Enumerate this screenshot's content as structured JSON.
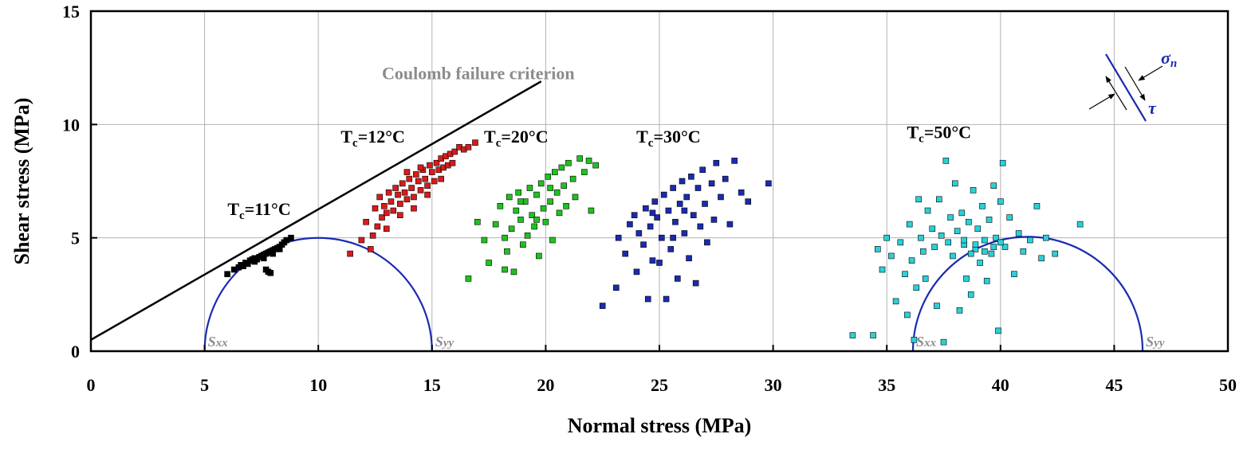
{
  "chart_data": {
    "type": "scatter",
    "xlabel": "Normal stress (MPa)",
    "ylabel": "Shear stress (MPa)",
    "xlim": [
      0,
      50
    ],
    "ylim": [
      0,
      15
    ],
    "xticks": [
      "0",
      "5",
      "10",
      "15",
      "20",
      "25",
      "30",
      "35",
      "40",
      "45",
      "50"
    ],
    "yticks": [
      "0",
      "5",
      "10",
      "15"
    ],
    "grid": true,
    "coulomb_line": {
      "label": "Coulomb failure criterion",
      "x": [
        0,
        19.8
      ],
      "y": [
        0.5,
        11.9
      ],
      "color": "#000000"
    },
    "mohr_circles": [
      {
        "center": 10.0,
        "radius": 5.0,
        "color": "#1a2bb0",
        "left_label": "S",
        "left_sub": "xx",
        "right_label": "S",
        "right_sub": "yy"
      },
      {
        "center": 41.2,
        "radius": 5.05,
        "color": "#1a2bb0",
        "left_label": "S",
        "left_sub": "xx",
        "right_label": "S",
        "right_sub": "yy"
      }
    ],
    "series": [
      {
        "name_main": "T",
        "name_sub": "c",
        "name_tail": "=11°C",
        "color": "#000000",
        "label_pos": [
          7.4,
          6.0
        ],
        "points": [
          [
            6.0,
            3.4
          ],
          [
            6.3,
            3.6
          ],
          [
            6.5,
            3.7
          ],
          [
            6.6,
            3.8
          ],
          [
            6.8,
            3.9
          ],
          [
            6.9,
            3.85
          ],
          [
            7.0,
            4.0
          ],
          [
            7.1,
            4.05
          ],
          [
            7.2,
            4.1
          ],
          [
            7.3,
            4.05
          ],
          [
            7.4,
            4.15
          ],
          [
            7.5,
            4.2
          ],
          [
            7.6,
            4.25
          ],
          [
            7.6,
            4.1
          ],
          [
            7.7,
            4.3
          ],
          [
            7.8,
            4.35
          ],
          [
            7.9,
            4.4
          ],
          [
            8.0,
            4.45
          ],
          [
            8.0,
            4.3
          ],
          [
            8.1,
            4.5
          ],
          [
            8.2,
            4.55
          ],
          [
            8.3,
            4.6
          ],
          [
            8.4,
            4.7
          ],
          [
            8.5,
            4.8
          ],
          [
            8.6,
            4.9
          ],
          [
            8.8,
            5.0
          ],
          [
            7.8,
            3.5
          ],
          [
            7.9,
            3.45
          ],
          [
            7.7,
            3.6
          ],
          [
            6.7,
            3.75
          ],
          [
            7.2,
            3.95
          ],
          [
            8.3,
            4.5
          ]
        ]
      },
      {
        "name_main": "T",
        "name_sub": "c",
        "name_tail": "=12°C",
        "color": "#d81b1b",
        "label_pos": [
          12.4,
          9.2
        ],
        "points": [
          [
            11.4,
            4.3
          ],
          [
            11.9,
            4.9
          ],
          [
            12.1,
            5.7
          ],
          [
            12.3,
            4.5
          ],
          [
            12.5,
            6.3
          ],
          [
            12.6,
            5.5
          ],
          [
            12.7,
            6.8
          ],
          [
            12.8,
            5.9
          ],
          [
            12.9,
            6.4
          ],
          [
            13.0,
            6.1
          ],
          [
            13.1,
            7.0
          ],
          [
            13.2,
            6.6
          ],
          [
            13.3,
            6.2
          ],
          [
            13.4,
            7.2
          ],
          [
            13.5,
            6.9
          ],
          [
            13.6,
            6.5
          ],
          [
            13.7,
            7.4
          ],
          [
            13.8,
            7.0
          ],
          [
            13.9,
            6.7
          ],
          [
            14.0,
            7.6
          ],
          [
            14.1,
            7.2
          ],
          [
            14.2,
            6.8
          ],
          [
            14.3,
            7.8
          ],
          [
            14.4,
            7.5
          ],
          [
            14.5,
            7.1
          ],
          [
            14.6,
            8.0
          ],
          [
            14.7,
            7.6
          ],
          [
            14.8,
            7.3
          ],
          [
            14.9,
            8.2
          ],
          [
            15.0,
            7.9
          ],
          [
            15.1,
            7.5
          ],
          [
            15.2,
            8.3
          ],
          [
            15.3,
            8.0
          ],
          [
            15.4,
            8.5
          ],
          [
            15.5,
            8.1
          ],
          [
            15.6,
            8.6
          ],
          [
            15.7,
            8.2
          ],
          [
            15.8,
            8.7
          ],
          [
            16.0,
            8.8
          ],
          [
            16.2,
            9.0
          ],
          [
            16.4,
            8.9
          ],
          [
            16.6,
            9.0
          ],
          [
            16.9,
            9.2
          ],
          [
            13.0,
            5.4
          ],
          [
            13.6,
            6.0
          ],
          [
            14.2,
            6.3
          ],
          [
            14.8,
            6.9
          ],
          [
            15.4,
            7.6
          ],
          [
            12.4,
            5.1
          ],
          [
            13.9,
            7.9
          ],
          [
            14.5,
            8.1
          ],
          [
            15.9,
            8.3
          ]
        ]
      },
      {
        "name_main": "T",
        "name_sub": "c",
        "name_tail": "=20°C",
        "color": "#1fc21f",
        "label_pos": [
          18.7,
          9.2
        ],
        "points": [
          [
            16.6,
            3.2
          ],
          [
            17.0,
            5.7
          ],
          [
            17.3,
            4.9
          ],
          [
            17.5,
            3.9
          ],
          [
            17.8,
            5.6
          ],
          [
            18.0,
            6.4
          ],
          [
            18.2,
            5.0
          ],
          [
            18.3,
            4.4
          ],
          [
            18.4,
            6.8
          ],
          [
            18.5,
            5.4
          ],
          [
            18.6,
            3.5
          ],
          [
            18.7,
            6.2
          ],
          [
            18.8,
            7.0
          ],
          [
            18.9,
            5.8
          ],
          [
            19.0,
            4.7
          ],
          [
            19.1,
            6.6
          ],
          [
            19.2,
            5.1
          ],
          [
            19.3,
            7.2
          ],
          [
            19.4,
            6.0
          ],
          [
            19.5,
            5.5
          ],
          [
            19.6,
            6.9
          ],
          [
            19.7,
            4.2
          ],
          [
            19.8,
            7.4
          ],
          [
            19.9,
            6.3
          ],
          [
            20.0,
            5.7
          ],
          [
            20.1,
            7.7
          ],
          [
            20.2,
            6.6
          ],
          [
            20.3,
            4.9
          ],
          [
            20.4,
            7.9
          ],
          [
            20.5,
            7.0
          ],
          [
            20.6,
            6.1
          ],
          [
            20.7,
            8.1
          ],
          [
            20.8,
            7.3
          ],
          [
            20.9,
            6.4
          ],
          [
            21.0,
            8.3
          ],
          [
            21.2,
            7.6
          ],
          [
            21.3,
            6.8
          ],
          [
            21.5,
            8.5
          ],
          [
            21.7,
            7.9
          ],
          [
            21.9,
            8.4
          ],
          [
            22.0,
            6.2
          ],
          [
            22.2,
            8.2
          ],
          [
            18.2,
            3.6
          ],
          [
            19.6,
            5.8
          ],
          [
            20.2,
            7.2
          ],
          [
            18.9,
            6.6
          ]
        ]
      },
      {
        "name_main": "T",
        "name_sub": "c",
        "name_tail": "=30°C",
        "color": "#1a2bb0",
        "label_pos": [
          25.4,
          9.2
        ],
        "points": [
          [
            22.5,
            2.0
          ],
          [
            23.1,
            2.8
          ],
          [
            23.2,
            5.0
          ],
          [
            23.5,
            4.3
          ],
          [
            23.7,
            5.6
          ],
          [
            23.9,
            6.0
          ],
          [
            24.0,
            3.5
          ],
          [
            24.1,
            5.2
          ],
          [
            24.3,
            4.7
          ],
          [
            24.4,
            6.3
          ],
          [
            24.5,
            2.3
          ],
          [
            24.6,
            5.5
          ],
          [
            24.7,
            4.0
          ],
          [
            24.8,
            6.6
          ],
          [
            24.9,
            5.9
          ],
          [
            25.0,
            3.9
          ],
          [
            25.1,
            5.0
          ],
          [
            25.2,
            6.9
          ],
          [
            25.3,
            2.3
          ],
          [
            25.4,
            6.2
          ],
          [
            25.5,
            4.5
          ],
          [
            25.6,
            7.2
          ],
          [
            25.7,
            5.7
          ],
          [
            25.8,
            3.2
          ],
          [
            25.9,
            6.5
          ],
          [
            26.0,
            7.5
          ],
          [
            26.1,
            5.2
          ],
          [
            26.2,
            6.8
          ],
          [
            26.3,
            4.1
          ],
          [
            26.4,
            7.7
          ],
          [
            26.5,
            6.0
          ],
          [
            26.6,
            3.0
          ],
          [
            26.7,
            7.2
          ],
          [
            26.8,
            5.5
          ],
          [
            26.9,
            8.0
          ],
          [
            27.0,
            6.5
          ],
          [
            27.1,
            4.8
          ],
          [
            27.3,
            7.4
          ],
          [
            27.4,
            5.8
          ],
          [
            27.5,
            8.3
          ],
          [
            27.7,
            6.8
          ],
          [
            27.9,
            7.6
          ],
          [
            28.1,
            5.6
          ],
          [
            28.3,
            8.4
          ],
          [
            28.6,
            7.0
          ],
          [
            28.9,
            6.6
          ],
          [
            29.8,
            7.4
          ],
          [
            26.1,
            6.2
          ],
          [
            25.6,
            5.0
          ],
          [
            24.7,
            6.1
          ]
        ]
      },
      {
        "name_main": "T",
        "name_sub": "c",
        "name_tail": "=50°C",
        "color": "#2ad0d8",
        "label_pos": [
          37.3,
          9.4
        ],
        "points": [
          [
            33.5,
            0.7
          ],
          [
            34.4,
            0.7
          ],
          [
            34.6,
            4.5
          ],
          [
            34.8,
            3.6
          ],
          [
            35.0,
            5.0
          ],
          [
            35.2,
            4.2
          ],
          [
            35.4,
            2.2
          ],
          [
            35.6,
            4.8
          ],
          [
            35.8,
            3.4
          ],
          [
            35.9,
            1.6
          ],
          [
            36.0,
            5.6
          ],
          [
            36.1,
            4.0
          ],
          [
            36.2,
            0.5
          ],
          [
            36.3,
            2.8
          ],
          [
            36.4,
            6.7
          ],
          [
            36.5,
            5.0
          ],
          [
            36.6,
            4.4
          ],
          [
            36.7,
            3.2
          ],
          [
            36.8,
            6.2
          ],
          [
            37.0,
            5.4
          ],
          [
            37.1,
            4.6
          ],
          [
            37.2,
            2.0
          ],
          [
            37.3,
            6.7
          ],
          [
            37.4,
            5.1
          ],
          [
            37.5,
            0.4
          ],
          [
            37.6,
            8.4
          ],
          [
            37.7,
            4.8
          ],
          [
            37.8,
            5.9
          ],
          [
            37.9,
            4.2
          ],
          [
            38.0,
            7.4
          ],
          [
            38.1,
            5.3
          ],
          [
            38.2,
            1.8
          ],
          [
            38.3,
            6.1
          ],
          [
            38.4,
            4.7
          ],
          [
            38.5,
            3.2
          ],
          [
            38.6,
            5.7
          ],
          [
            38.7,
            2.5
          ],
          [
            38.8,
            7.1
          ],
          [
            38.9,
            4.5
          ],
          [
            39.0,
            5.4
          ],
          [
            39.1,
            3.9
          ],
          [
            39.2,
            6.4
          ],
          [
            39.3,
            4.9
          ],
          [
            39.4,
            3.1
          ],
          [
            39.5,
            5.8
          ],
          [
            39.6,
            4.3
          ],
          [
            39.7,
            7.3
          ],
          [
            39.8,
            5.0
          ],
          [
            39.9,
            0.9
          ],
          [
            40.0,
            6.6
          ],
          [
            40.1,
            8.3
          ],
          [
            40.2,
            4.6
          ],
          [
            40.4,
            5.9
          ],
          [
            40.6,
            3.4
          ],
          [
            40.8,
            5.2
          ],
          [
            41.0,
            4.4
          ],
          [
            41.3,
            4.9
          ],
          [
            41.6,
            6.4
          ],
          [
            41.8,
            4.1
          ],
          [
            42.0,
            5.0
          ],
          [
            42.4,
            4.3
          ],
          [
            43.5,
            5.6
          ],
          [
            38.9,
            4.7
          ],
          [
            39.3,
            4.4
          ],
          [
            38.4,
            4.9
          ],
          [
            39.7,
            4.6
          ],
          [
            40.0,
            4.8
          ],
          [
            38.7,
            4.3
          ]
        ]
      }
    ],
    "inset": {
      "sigma_label": "σ",
      "sigma_sub": "n",
      "tau_label": "τ"
    }
  }
}
